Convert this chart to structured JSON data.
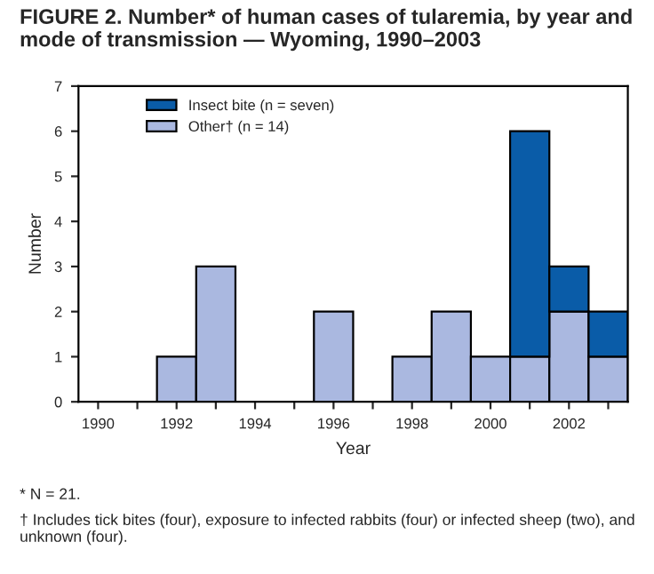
{
  "chart_data": {
    "type": "bar",
    "stacked": true,
    "title": "FIGURE 2. Number* of human cases of tularemia, by year and mode of transmission — Wyoming, 1990–2003",
    "xlabel": "Year",
    "ylabel": "Number",
    "categories": [
      "1990",
      null,
      "1992",
      null,
      "1994",
      null,
      "1996",
      null,
      "1998",
      null,
      "2000",
      null,
      "2002",
      null
    ],
    "series": [
      {
        "name": "Other† (n = 14)",
        "color": "#aab8e0",
        "values": [
          0,
          0,
          1,
          3,
          0,
          0,
          2,
          0,
          1,
          2,
          1,
          1,
          2,
          1
        ]
      },
      {
        "name": "Insect bite (n = seven)",
        "color": "#0a5ca8",
        "values": [
          0,
          0,
          0,
          0,
          0,
          0,
          0,
          0,
          0,
          0,
          0,
          5,
          1,
          1
        ]
      }
    ],
    "ylim": [
      0,
      7
    ],
    "yticks": [
      0,
      1,
      2,
      3,
      4,
      5,
      6,
      7
    ],
    "grid": false,
    "legend": "top left",
    "annotations": [
      "* N = 21.",
      "† Includes tick bites (four), exposure to infected rabbits (four) or infected sheep (two), and unknown (four)."
    ]
  }
}
